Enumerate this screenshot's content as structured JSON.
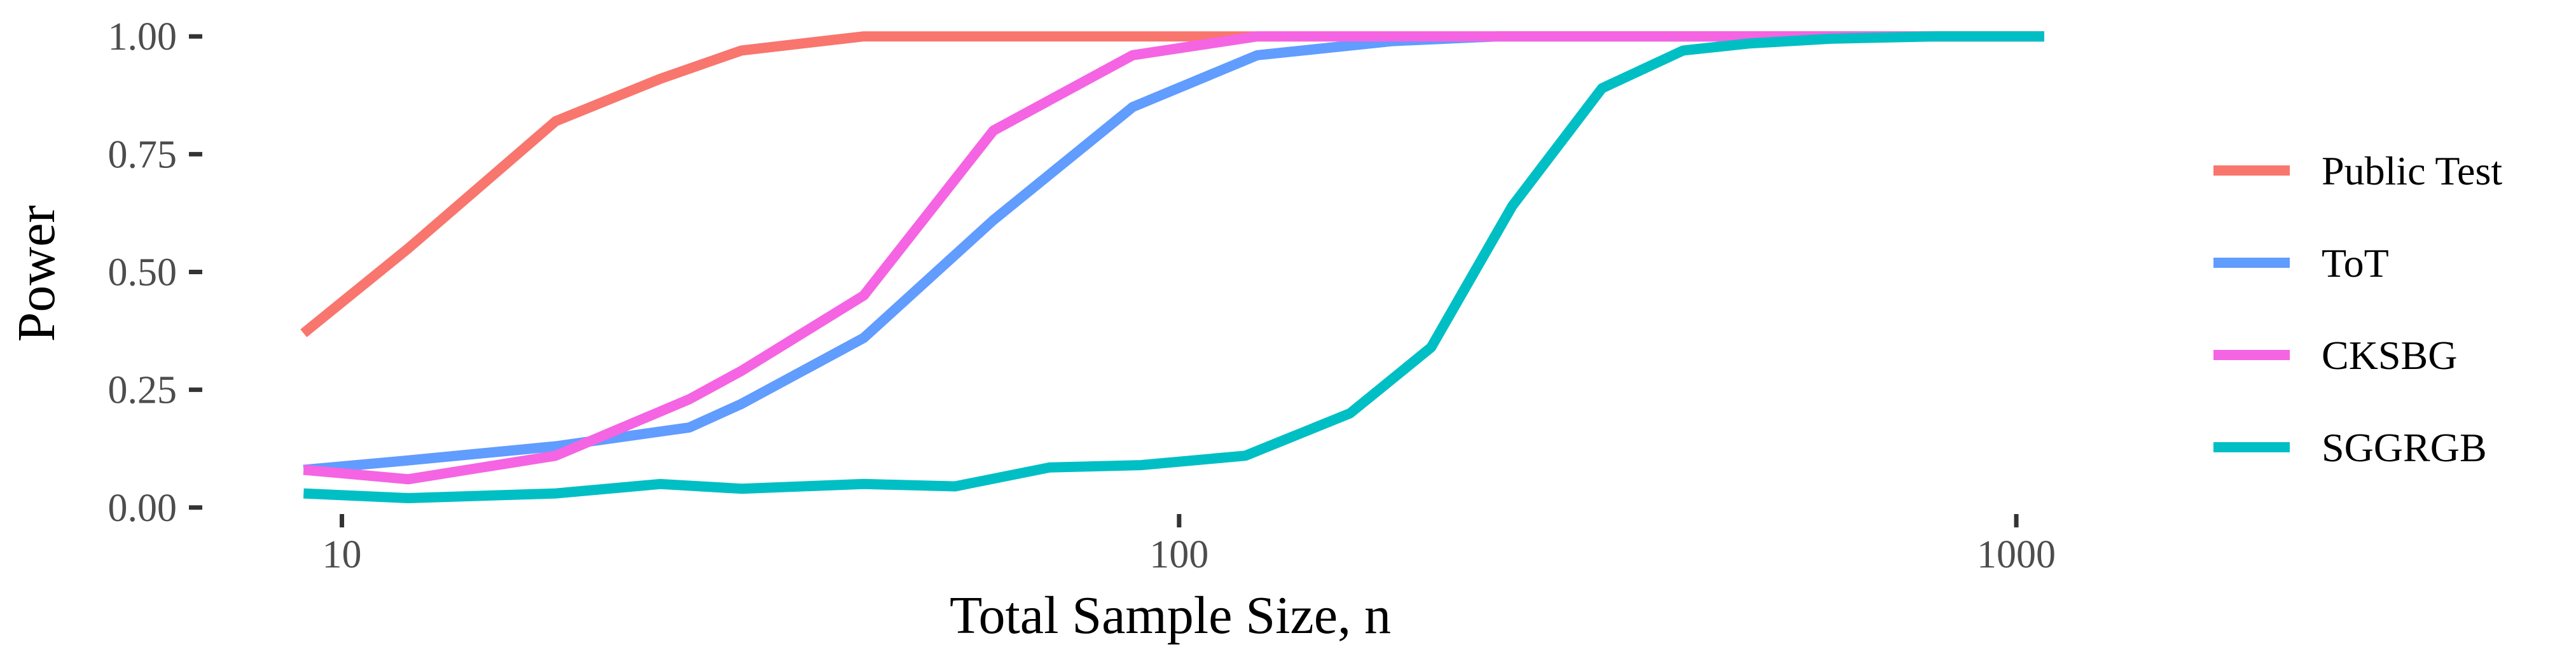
{
  "chart_data": {
    "type": "line",
    "xlabel": "Total Sample Size, n",
    "ylabel": "Power",
    "xscale": "log10",
    "xlim": [
      8,
      1300
    ],
    "ylim": [
      -0.03,
      1.03
    ],
    "x_ticks": [
      10,
      100,
      1000
    ],
    "x_tick_labels": [
      "10",
      "100",
      "1000"
    ],
    "y_ticks": [
      0,
      0.25,
      0.5,
      0.75,
      1
    ],
    "y_tick_labels": [
      "0.00",
      "0.25",
      "0.50",
      "0.75",
      "1.00"
    ],
    "grid": false,
    "legend_position": "right",
    "series": [
      {
        "name": "Public Test",
        "color": "#F8766D",
        "points": [
          [
            9,
            0.37
          ],
          [
            12,
            0.55
          ],
          [
            18,
            0.82
          ],
          [
            24,
            0.91
          ],
          [
            30,
            0.97
          ],
          [
            42,
            1.0
          ],
          [
            54,
            1.0
          ],
          [
            70,
            1.0
          ],
          [
            90,
            1.0
          ],
          [
            120,
            1.0
          ],
          [
            160,
            1.0
          ],
          [
            240,
            1.0
          ],
          [
            320,
            1.0
          ],
          [
            480,
            1.0
          ],
          [
            720,
            1.0
          ],
          [
            1080,
            1.0
          ]
        ]
      },
      {
        "name": "ToT",
        "color": "#619CFF",
        "points": [
          [
            9,
            0.08
          ],
          [
            12,
            0.1
          ],
          [
            18,
            0.13
          ],
          [
            26,
            0.17
          ],
          [
            30,
            0.22
          ],
          [
            42,
            0.36
          ],
          [
            60,
            0.61
          ],
          [
            88,
            0.85
          ],
          [
            124,
            0.96
          ],
          [
            180,
            0.99
          ],
          [
            240,
            1.0
          ],
          [
            320,
            1.0
          ],
          [
            480,
            1.0
          ],
          [
            720,
            1.0
          ],
          [
            1080,
            1.0
          ]
        ]
      },
      {
        "name": "CKSBG",
        "color": "#F564E3",
        "points": [
          [
            9,
            0.08
          ],
          [
            12,
            0.06
          ],
          [
            18,
            0.11
          ],
          [
            26,
            0.23
          ],
          [
            30,
            0.29
          ],
          [
            42,
            0.45
          ],
          [
            60,
            0.8
          ],
          [
            88,
            0.96
          ],
          [
            124,
            1.0
          ],
          [
            180,
            1.0
          ],
          [
            240,
            1.0
          ],
          [
            320,
            1.0
          ],
          [
            480,
            1.0
          ],
          [
            720,
            1.0
          ],
          [
            1080,
            1.0
          ]
        ]
      },
      {
        "name": "SGGRGB",
        "color": "#00BFC4",
        "points": [
          [
            9,
            0.03
          ],
          [
            12,
            0.02
          ],
          [
            18,
            0.03
          ],
          [
            24,
            0.05
          ],
          [
            30,
            0.04
          ],
          [
            42,
            0.05
          ],
          [
            54,
            0.045
          ],
          [
            70,
            0.085
          ],
          [
            90,
            0.09
          ],
          [
            120,
            0.11
          ],
          [
            160,
            0.2
          ],
          [
            200,
            0.34
          ],
          [
            250,
            0.64
          ],
          [
            320,
            0.89
          ],
          [
            400,
            0.97
          ],
          [
            480,
            0.985
          ],
          [
            600,
            0.995
          ],
          [
            800,
            1.0
          ],
          [
            1080,
            1.0
          ]
        ]
      }
    ]
  }
}
